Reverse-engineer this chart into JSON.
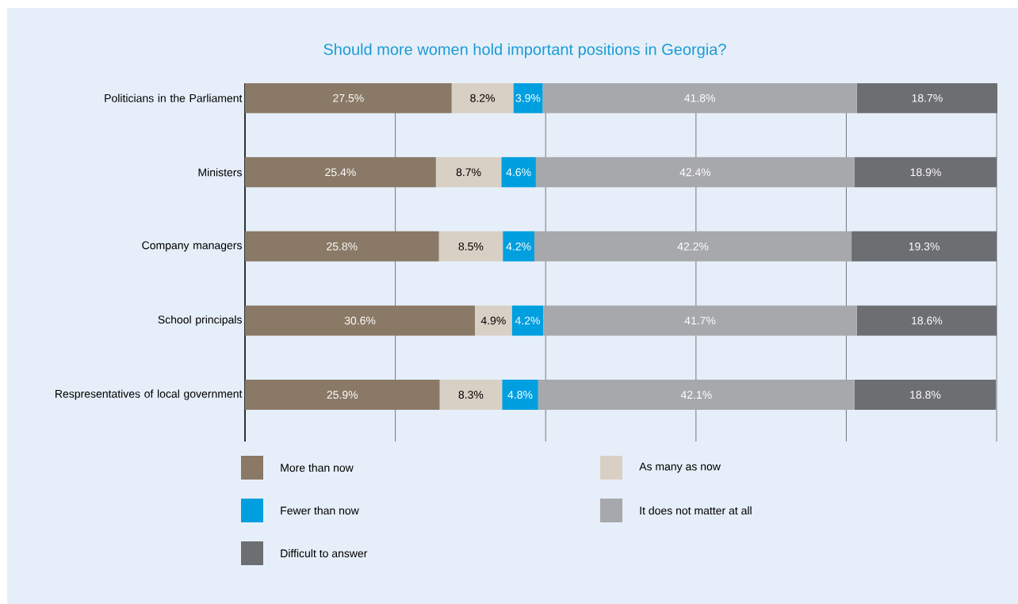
{
  "chart_data": {
    "type": "bar",
    "orientation": "horizontal",
    "stacked": true,
    "title": "Should more women hold important positions in Georgia?",
    "categories": [
      "Politicians in the Parliament",
      "Ministers",
      "Company managers",
      "School principals",
      "Respresentatives of local government"
    ],
    "series": [
      {
        "name": "More than now",
        "color": "#8a7966",
        "values": [
          27.5,
          25.4,
          25.8,
          30.6,
          25.9
        ],
        "value_labels": [
          "27.5%",
          "25.4%",
          "25.8%",
          "30.6%",
          "25.9%"
        ]
      },
      {
        "name": "As many as now",
        "color": "#d9d0c5",
        "values": [
          8.2,
          8.7,
          8.5,
          4.9,
          8.3
        ],
        "value_labels": [
          "8.2%",
          "8.7%",
          "8.5%",
          "4.9%",
          "8.3%"
        ]
      },
      {
        "name": "Fewer than now",
        "color": "#009fdf",
        "values": [
          3.9,
          4.6,
          4.2,
          4.2,
          4.8
        ],
        "value_labels": [
          "3.9%",
          "4.6%",
          "4.2%",
          "4.2%",
          "4.8%"
        ]
      },
      {
        "name": "It does not matter at all",
        "color": "#a7a8ab",
        "values": [
          41.8,
          42.4,
          42.2,
          41.7,
          42.1
        ],
        "value_labels": [
          "41.8%",
          "42.4%",
          "42.2%",
          "41.7%",
          "42.1%"
        ]
      },
      {
        "name": "Difficult to answer",
        "color": "#6d6e72",
        "values": [
          18.7,
          18.9,
          19.3,
          18.6,
          18.8
        ],
        "value_labels": [
          "18.7%",
          "18.9%",
          "19.3%",
          "18.6%",
          "18.8%"
        ]
      }
    ],
    "xlim": [
      0,
      100.1
    ],
    "xticks": [
      {
        "value": 20,
        "label": null
      },
      {
        "value": 40,
        "label": null
      },
      {
        "value": 60,
        "label": null
      },
      {
        "value": 80,
        "label": null
      },
      {
        "value": 100,
        "label": null
      }
    ],
    "grid": "x",
    "tick_labels": "y",
    "legend": "bottom"
  }
}
